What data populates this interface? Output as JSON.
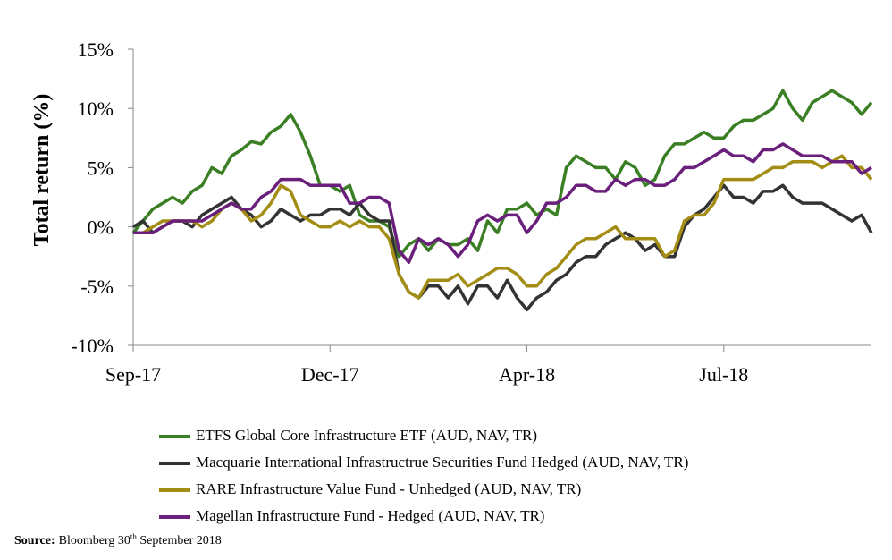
{
  "chart_data": {
    "type": "line",
    "y_label": "Total return (%)",
    "categories": [
      "Sep-17",
      null,
      null,
      null,
      null,
      null,
      null,
      null,
      null,
      null,
      null,
      null,
      null,
      null,
      null,
      null,
      null,
      null,
      null,
      null,
      "Dec-17",
      null,
      null,
      null,
      null,
      null,
      null,
      null,
      null,
      null,
      null,
      null,
      null,
      null,
      null,
      null,
      null,
      null,
      null,
      null,
      "Apr-18",
      null,
      null,
      null,
      null,
      null,
      null,
      null,
      null,
      null,
      null,
      null,
      null,
      null,
      null,
      null,
      null,
      null,
      null,
      null,
      "Jul-18",
      null,
      null,
      null,
      null,
      null,
      null,
      null,
      null,
      null,
      null,
      null,
      null,
      null,
      null,
      null
    ],
    "ylim": [
      -10,
      15
    ],
    "yticks": [
      {
        "value": 15,
        "label": "15%"
      },
      {
        "value": 10,
        "label": "10%"
      },
      {
        "value": 5,
        "label": "5%"
      },
      {
        "value": 0,
        "label": "0%"
      },
      {
        "value": -5,
        "label": "-5%"
      },
      {
        "value": -10,
        "label": "-10%"
      }
    ],
    "series": [
      {
        "name": "ETFS Global Core Infrastructure ETF (AUD, NAV, TR)",
        "color": "#3b7f24",
        "values": [
          -0.5,
          0.5,
          1.5,
          2,
          2.5,
          2,
          3,
          3.5,
          5,
          4.5,
          6,
          6.5,
          7.2,
          7,
          8,
          8.5,
          9.5,
          8,
          6,
          3.5,
          3.5,
          3,
          3.5,
          1,
          0.5,
          0.5,
          0,
          -2.5,
          -1.5,
          -1,
          -2,
          -1,
          -1.5,
          -1.5,
          -1,
          -2,
          0.5,
          -0.5,
          1.5,
          1.5,
          2,
          1,
          1.5,
          1,
          5,
          6,
          5.5,
          5,
          5,
          4,
          5.5,
          5,
          3.5,
          4,
          6,
          7,
          7,
          7.5,
          8,
          7.5,
          7.5,
          8.5,
          9,
          9,
          9.5,
          10,
          11.5,
          10,
          9,
          10.5,
          11,
          11.5,
          11,
          10.5,
          9.5,
          10.5
        ]
      },
      {
        "name": "Macquarie International Infrastructrue Securities Fund Hedged (AUD, NAV, TR)",
        "color": "#333333",
        "values": [
          0,
          0.5,
          -0.5,
          0,
          0.5,
          0.5,
          0,
          1,
          1.5,
          2,
          2.5,
          1.5,
          1,
          0,
          0.5,
          1.5,
          1,
          0.5,
          1,
          1,
          1.5,
          1.5,
          1,
          2,
          1,
          0.5,
          0.5,
          -4,
          -5.5,
          -6,
          -5,
          -5,
          -6,
          -5,
          -6.5,
          -5,
          -5,
          -6,
          -4.5,
          -6,
          -7,
          -6,
          -5.5,
          -4.5,
          -4,
          -3,
          -2.5,
          -2.5,
          -1.5,
          -1,
          -0.5,
          -1,
          -2,
          -1.5,
          -2.5,
          -2.5,
          0,
          1,
          1.5,
          2.5,
          3.5,
          2.5,
          2.5,
          2,
          3,
          3,
          3.5,
          2.5,
          2,
          2,
          2,
          1.5,
          1,
          0.5,
          1,
          -0.5
        ]
      },
      {
        "name": "RARE Infrastructure Value Fund - Unhedged (AUD, NAV, TR)",
        "color": "#a38d14",
        "values": [
          -0.5,
          -0.5,
          0,
          0.5,
          0.5,
          0.5,
          0.5,
          0,
          0.5,
          1.5,
          2,
          1.5,
          0.5,
          1,
          2,
          3.5,
          3,
          1,
          0.5,
          0,
          0,
          0.5,
          0,
          0.5,
          0,
          0,
          -1,
          -4,
          -5.5,
          -6,
          -4.5,
          -4.5,
          -4.5,
          -4,
          -5,
          -4.5,
          -4,
          -3.5,
          -3.5,
          -4,
          -5,
          -5,
          -4,
          -3.5,
          -2.5,
          -1.5,
          -1,
          -1,
          -0.5,
          0,
          -1,
          -1,
          -1,
          -1,
          -2.5,
          -2,
          0.5,
          1,
          1,
          2,
          4,
          4,
          4,
          4,
          4.5,
          5,
          5,
          5.5,
          5.5,
          5.5,
          5,
          5.5,
          6,
          5,
          5,
          4
        ]
      },
      {
        "name": "Magellan Infrastructure Fund - Hedged (AUD, NAV, TR)",
        "color": "#6b1f7c",
        "values": [
          -0.5,
          -0.5,
          -0.5,
          0,
          0.5,
          0.5,
          0.5,
          0.5,
          1,
          1.5,
          2,
          1.5,
          1.5,
          2.5,
          3,
          4,
          4,
          4,
          3.5,
          3.5,
          3.5,
          3.5,
          2,
          2,
          2.5,
          2.5,
          2,
          -2,
          -3,
          -1,
          -1.5,
          -1,
          -1.5,
          -2.5,
          -1.5,
          0.5,
          1,
          0.5,
          1,
          1,
          -0.5,
          0.5,
          2,
          2,
          2.5,
          3.5,
          3.5,
          3,
          3,
          4,
          3.5,
          4,
          4,
          3.5,
          3.5,
          4,
          5,
          5,
          5.5,
          6,
          6.5,
          6,
          6,
          5.5,
          6.5,
          6.5,
          7,
          6.5,
          6,
          6,
          6,
          5.5,
          5.5,
          5.5,
          4.5,
          5
        ]
      }
    ],
    "source": {
      "label": "Source:",
      "text": [
        "Bloomberg 30",
        "th",
        " September 2018"
      ]
    }
  }
}
